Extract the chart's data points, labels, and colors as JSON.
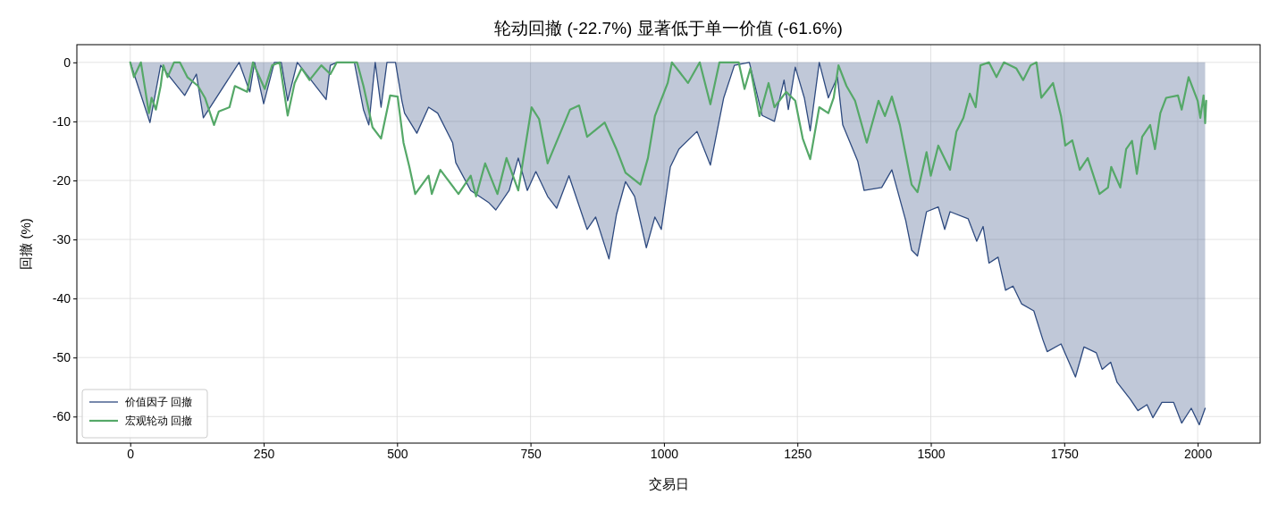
{
  "chart_data": {
    "type": "line",
    "title": "轮动回撤 (-22.7%) 显著低于单一价值 (-61.6%)",
    "xlabel": "交易日",
    "ylabel": "回撤 (%)",
    "xlim": [
      -100,
      2117
    ],
    "xticks": [
      0,
      250,
      500,
      750,
      1000,
      1250,
      1500,
      1750,
      2000
    ],
    "ylim": [
      -64.5,
      3
    ],
    "yticks": [
      0,
      -10,
      -20,
      -30,
      -40,
      -50,
      -60
    ],
    "grid": true,
    "legend": "bottom left",
    "series": [
      {
        "name": "价值因子 回撤",
        "type": "area",
        "color": "#2e4a7f",
        "x": [
          0,
          37,
          57,
          102,
          124,
          137,
          204,
          224,
          233,
          250,
          270,
          283,
          295,
          313,
          367,
          375,
          387,
          420,
          437,
          447,
          459,
          470,
          481,
          497,
          509,
          514,
          537,
          559,
          576,
          604,
          610,
          638,
          671,
          685,
          710,
          727,
          744,
          760,
          782,
          799,
          822,
          856,
          872,
          897,
          911,
          928,
          945,
          967,
          983,
          995,
          1012,
          1028,
          1062,
          1087,
          1112,
          1132,
          1160,
          1184,
          1207,
          1225,
          1233,
          1246,
          1263,
          1274,
          1291,
          1308,
          1325,
          1335,
          1363,
          1375,
          1408,
          1427,
          1453,
          1464,
          1475,
          1492,
          1514,
          1526,
          1536,
          1570,
          1586,
          1598,
          1609,
          1626,
          1640,
          1654,
          1670,
          1693,
          1710,
          1718,
          1744,
          1771,
          1787,
          1810,
          1821,
          1837,
          1849,
          1874,
          1888,
          1905,
          1916,
          1933,
          1955,
          1970,
          1988,
          2003,
          2014
        ],
        "values": [
          0,
          -10.2,
          -0.5,
          -5.6,
          -2,
          -9.4,
          0,
          -5,
          0,
          -7,
          0,
          0,
          -6.5,
          0,
          -6.3,
          -0.5,
          0,
          0,
          -8,
          -10.6,
          0,
          -7.6,
          0,
          0,
          -6.5,
          -8.6,
          -12,
          -7.6,
          -8.6,
          -13.6,
          -17,
          -21.7,
          -23.7,
          -25,
          -21.7,
          -16.2,
          -21.7,
          -18.5,
          -22.7,
          -24.7,
          -19.2,
          -28.3,
          -26.2,
          -33.3,
          -25.8,
          -20.2,
          -22.7,
          -31.4,
          -26.2,
          -28.3,
          -17.7,
          -14.7,
          -11.7,
          -17.4,
          -6,
          -0.5,
          0,
          -9,
          -10,
          -3,
          -8,
          -0.8,
          -6,
          -11.6,
          0,
          -6,
          -2.5,
          -10.6,
          -16.7,
          -21.7,
          -21.2,
          -18.2,
          -26.8,
          -31.8,
          -32.8,
          -25.3,
          -24.5,
          -28.3,
          -25.3,
          -26.5,
          -30.3,
          -27.8,
          -34,
          -33,
          -38.6,
          -37.9,
          -40.9,
          -42.1,
          -47,
          -49,
          -47.7,
          -53.3,
          -48.2,
          -49.2,
          -52,
          -50.8,
          -54.2,
          -57.1,
          -59,
          -58,
          -60.2,
          -57.6,
          -57.6,
          -61.1,
          -58.6,
          -61.4,
          -58.6
        ]
      },
      {
        "name": "宏观轮动 回撤",
        "color": "#55a868",
        "x": [
          0,
          7,
          20,
          35,
          40,
          48,
          57,
          62,
          70,
          82,
          93,
          107,
          127,
          140,
          157,
          166,
          186,
          196,
          219,
          230,
          252,
          266,
          280,
          295,
          308,
          321,
          336,
          358,
          375,
          387,
          425,
          437,
          454,
          470,
          487,
          501,
          512,
          523,
          534,
          559,
          565,
          581,
          615,
          638,
          648,
          665,
          688,
          705,
          727,
          752,
          766,
          782,
          824,
          841,
          856,
          889,
          911,
          928,
          956,
          970,
          983,
          1007,
          1015,
          1028,
          1045,
          1067,
          1087,
          1104,
          1140,
          1151,
          1162,
          1179,
          1196,
          1207,
          1229,
          1246,
          1260,
          1274,
          1291,
          1308,
          1318,
          1327,
          1342,
          1358,
          1380,
          1402,
          1414,
          1427,
          1442,
          1464,
          1475,
          1492,
          1500,
          1514,
          1536,
          1548,
          1561,
          1573,
          1584,
          1593,
          1609,
          1623,
          1637,
          1660,
          1673,
          1687,
          1698,
          1707,
          1729,
          1744,
          1752,
          1765,
          1779,
          1794,
          1816,
          1832,
          1838,
          1855,
          1866,
          1877,
          1886,
          1896,
          1911,
          1920,
          1930,
          1941,
          1963,
          1970,
          1983,
          2000,
          2005,
          2011,
          2014,
          2016
        ],
        "values": [
          0,
          -2.5,
          0,
          -8.6,
          -6,
          -8,
          -4,
          -0.5,
          -2.5,
          0,
          0,
          -2.5,
          -4,
          -6,
          -10.6,
          -8.3,
          -7.6,
          -4,
          -5,
          0,
          -4.5,
          -0.5,
          0,
          -9,
          -3.5,
          -1,
          -3,
          -0.5,
          -2,
          0,
          0,
          -4,
          -11,
          -12.9,
          -5.6,
          -5.8,
          -13.6,
          -17.7,
          -22.3,
          -19.2,
          -22.3,
          -18.2,
          -22.3,
          -19.2,
          -22.7,
          -17.1,
          -22.3,
          -16.2,
          -21.7,
          -7.6,
          -9.6,
          -17.1,
          -8,
          -7.3,
          -12.6,
          -10.2,
          -14.7,
          -18.7,
          -20.7,
          -16.2,
          -9.1,
          -3.5,
          0,
          -1.5,
          -3.5,
          0,
          -7.1,
          0,
          0,
          -4.5,
          -1,
          -9.1,
          -3.5,
          -7.6,
          -5,
          -6.5,
          -12.9,
          -16.4,
          -7.6,
          -8.6,
          -6,
          -0.5,
          -4,
          -6.5,
          -13.6,
          -6.5,
          -9.1,
          -5.8,
          -10.6,
          -20.7,
          -22,
          -15.2,
          -19.2,
          -14.1,
          -18.2,
          -11.7,
          -9.4,
          -5.3,
          -7.6,
          -0.5,
          0,
          -2.5,
          0,
          -1,
          -3,
          -0.5,
          0,
          -6,
          -3.5,
          -9.1,
          -14.1,
          -13.2,
          -18.2,
          -16.2,
          -22.3,
          -21.2,
          -17.7,
          -21.2,
          -14.7,
          -13.3,
          -18.9,
          -12.6,
          -10.6,
          -14.7,
          -8.6,
          -6,
          -5.6,
          -8,
          -2.5,
          -6.5,
          -9.4,
          -5.6,
          -10.3,
          -6.5
        ]
      }
    ]
  }
}
